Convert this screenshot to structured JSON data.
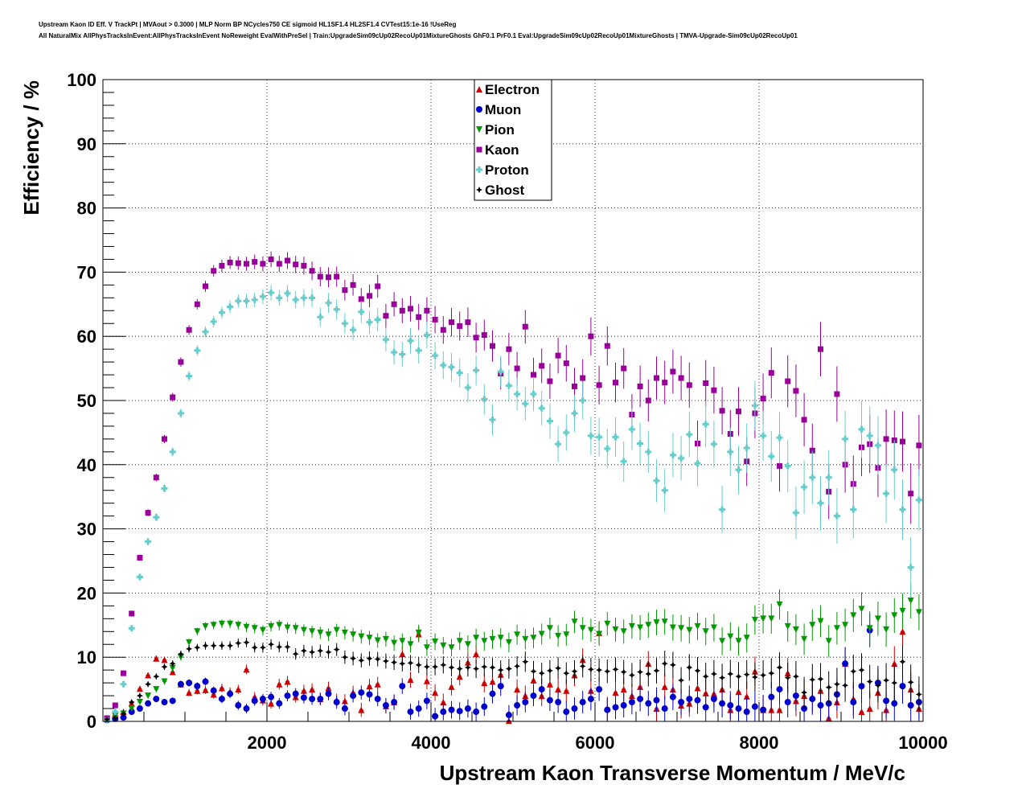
{
  "header": {
    "line1": "Upstream Kaon ID Eff. V TrackPt | MVAout > 0.3000 | MLP Norm BP NCycles750 CE sigmoid HL1SF1.4 HL2SF1.4 CVTest15:1e-16 !UseReg",
    "line2": "All NaturalMix AllPhysTracksInEvent:AllPhysTracksInEvent NoReweight EvalWithPreSel | Train:UpgradeSim09cUp02RecoUp01MixtureGhosts GhF0.1 PrF0.1 Eval:UpgradeSim09cUp02RecoUp01MixtureGhosts | TMVA-Upgrade-Sim09cUp02RecoUp01"
  },
  "chart_data": {
    "type": "scatter",
    "title": "",
    "xlabel": "Upstream Kaon Transverse Momentum / MeV/c",
    "ylabel": "Efficiency / %",
    "xlim": [
      0,
      10000
    ],
    "ylim": [
      0,
      100
    ],
    "xticks": [
      "2000",
      "4000",
      "6000",
      "8000",
      "10000"
    ],
    "yticks": [
      "0",
      "10",
      "20",
      "30",
      "40",
      "50",
      "60",
      "70",
      "80",
      "90",
      "100"
    ],
    "grid": true,
    "legend_placement": "top-center",
    "x": [
      50,
      150,
      250,
      350,
      450,
      550,
      650,
      750,
      850,
      950,
      1050,
      1150,
      1250,
      1350,
      1450,
      1550,
      1650,
      1750,
      1850,
      1950,
      2050,
      2150,
      2250,
      2350,
      2450,
      2550,
      2650,
      2750,
      2850,
      2950,
      3050,
      3150,
      3250,
      3350,
      3450,
      3550,
      3650,
      3750,
      3850,
      3950,
      4050,
      4150,
      4250,
      4350,
      4450,
      4550,
      4650,
      4750,
      4850,
      4950,
      5050,
      5150,
      5250,
      5350,
      5450,
      5550,
      5650,
      5750,
      5850,
      5950,
      6050,
      6150,
      6250,
      6350,
      6450,
      6550,
      6650,
      6750,
      6850,
      6950,
      7050,
      7150,
      7250,
      7350,
      7450,
      7550,
      7650,
      7750,
      7850,
      7950,
      8050,
      8150,
      8250,
      8350,
      8450,
      8550,
      8650,
      8750,
      8850,
      8950,
      9050,
      9150,
      9250,
      9350,
      9450,
      9550,
      9650,
      9750,
      9850,
      9950
    ],
    "series": [
      {
        "name": "Electron",
        "color": "#cc0000",
        "marker": "triangle-up",
        "values": [
          0.5,
          1.2,
          1.5,
          2.8,
          5.1,
          7.2,
          9.8,
          9.6,
          7.7,
          5.8,
          4.5,
          4.8,
          4.9,
          4.2,
          5.2,
          4.6,
          5.0,
          8.1,
          3.8,
          3.3,
          2.8,
          5.8,
          6.2,
          3.8,
          4.8,
          5.0,
          3.5,
          5.2,
          3.3,
          3.2,
          4.5,
          1.8,
          5.5,
          5.8,
          2.4,
          3.0,
          10.5,
          6.5,
          13.6,
          6.3,
          4.5,
          3.0,
          5.4,
          7.0,
          9.2,
          10.5,
          6.0,
          6.2,
          7.3,
          0.1,
          5.0,
          4.0,
          6.4,
          4.0,
          5.8,
          5.0,
          4.8,
          7.2,
          9.6,
          4.8,
          13.8,
          2.0,
          4.5,
          5.0,
          4.0,
          5.4,
          9.0,
          2.0,
          5.4,
          5.0,
          2.5,
          2.8,
          5.2,
          4.4,
          4.3,
          5.0,
          1.8,
          4.6,
          3.9,
          7.8,
          1.8,
          1.8,
          1.8,
          7.5,
          3.2,
          4.0,
          3.8,
          4.8,
          0.5,
          3.0,
          9.0,
          3.5,
          1.5,
          2.0,
          4.5,
          1.8,
          9.0,
          14.0,
          5.0,
          2.0
        ]
      },
      {
        "name": "Muon",
        "color": "#0000cc",
        "marker": "circle",
        "values": [
          0.2,
          0.4,
          0.6,
          1.5,
          2.0,
          2.8,
          3.5,
          3.0,
          3.2,
          5.8,
          6.0,
          5.5,
          6.2,
          4.8,
          3.5,
          4.3,
          2.5,
          2.0,
          3.2,
          3.5,
          3.8,
          2.8,
          4.0,
          4.3,
          3.7,
          3.5,
          3.5,
          4.3,
          3.0,
          2.0,
          4.0,
          4.5,
          4.2,
          3.5,
          2.5,
          3.0,
          5.5,
          1.5,
          2.0,
          3.2,
          0.8,
          1.5,
          1.8,
          1.6,
          2.0,
          1.5,
          2.3,
          4.3,
          5.5,
          1.0,
          2.5,
          3.0,
          4.0,
          5.0,
          3.3,
          3.0,
          1.5,
          2.0,
          3.0,
          3.5,
          5.0,
          1.8,
          2.2,
          2.5,
          3.0,
          3.5,
          2.8,
          3.3,
          2.0,
          3.8,
          3.0,
          3.5,
          3.3,
          2.2,
          3.5,
          2.8,
          2.5,
          2.0,
          1.5,
          2.3,
          1.8,
          3.8,
          5.0,
          3.0,
          4.0,
          2.0,
          3.5,
          2.5,
          2.8,
          4.2,
          9.0,
          3.0,
          5.5,
          14.2,
          6.0,
          3.2,
          2.8,
          5.5,
          2.5,
          3.0
        ]
      },
      {
        "name": "Pion",
        "color": "#009900",
        "marker": "triangle-down",
        "values": [
          0.3,
          0.8,
          1.2,
          2.0,
          3.0,
          4.0,
          5.0,
          6.2,
          8.3,
          10.0,
          12.3,
          14.0,
          14.8,
          15.0,
          15.2,
          15.2,
          15.0,
          14.7,
          14.5,
          14.2,
          14.8,
          15.0,
          14.6,
          14.5,
          14.2,
          14.0,
          13.8,
          13.5,
          14.2,
          13.8,
          13.5,
          13.2,
          13.0,
          12.6,
          12.8,
          12.2,
          12.5,
          12.0,
          13.8,
          11.5,
          12.4,
          11.8,
          11.5,
          12.5,
          12.0,
          13.0,
          12.5,
          12.8,
          13.0,
          12.3,
          13.5,
          12.8,
          13.0,
          13.6,
          14.5,
          13.3,
          13.5,
          15.5,
          14.5,
          14.2,
          13.6,
          15.2,
          14.3,
          14.0,
          14.8,
          14.6,
          15.0,
          15.4,
          15.5,
          14.6,
          14.5,
          14.2,
          14.8,
          14.0,
          14.6,
          12.5,
          13.2,
          12.5,
          13.0,
          15.8,
          16.0,
          16.0,
          18.2,
          14.8,
          14.3,
          12.8,
          15.0,
          15.6,
          12.5,
          14.5,
          15.0,
          16.5,
          17.5,
          14.5,
          16.0,
          14.3,
          16.5,
          17.2,
          18.8,
          17.0
        ]
      },
      {
        "name": "Kaon",
        "color": "#990099",
        "marker": "square",
        "values": [
          0.5,
          2.5,
          7.5,
          16.8,
          25.5,
          32.5,
          38.0,
          44.0,
          50.5,
          56.0,
          61.0,
          65.0,
          67.8,
          70.2,
          71.0,
          71.5,
          71.4,
          71.3,
          71.6,
          71.3,
          72.0,
          71.3,
          71.8,
          71.2,
          71.0,
          70.2,
          69.3,
          69.2,
          69.3,
          67.2,
          68.0,
          65.8,
          66.3,
          67.8,
          63.2,
          65.0,
          64.0,
          64.3,
          63.0,
          64.0,
          62.6,
          61.0,
          62.2,
          61.6,
          62.2,
          59.8,
          60.2,
          58.5,
          54.2,
          58.0,
          55.0,
          61.5,
          54.0,
          55.4,
          53.0,
          57.0,
          55.8,
          52.2,
          53.5,
          60.0,
          52.4,
          58.5,
          52.8,
          55.0,
          47.8,
          52.2,
          50.0,
          53.5,
          52.8,
          54.5,
          53.5,
          52.4,
          43.3,
          52.7,
          51.6,
          48.4,
          44.8,
          48.3,
          40.5,
          48.0,
          50.3,
          54.3,
          39.8,
          53.0,
          51.5,
          47.0,
          42.2,
          58.0,
          35.8,
          51.0,
          40.0,
          37.0,
          42.7,
          43.2,
          39.5,
          44.0,
          43.8,
          43.6,
          35.5,
          43.0
        ]
      },
      {
        "name": "Proton",
        "color": "#66cccc",
        "marker": "plus",
        "values": [
          0.2,
          1.5,
          5.8,
          14.5,
          22.5,
          28.0,
          31.8,
          36.3,
          42.0,
          48.0,
          53.8,
          57.8,
          60.7,
          62.3,
          63.7,
          64.6,
          65.5,
          65.5,
          65.7,
          66.2,
          66.8,
          66.0,
          66.7,
          65.7,
          66.0,
          66.0,
          63.0,
          65.2,
          64.2,
          62.0,
          61.0,
          63.8,
          62.2,
          62.6,
          59.5,
          57.5,
          57.2,
          59.3,
          57.8,
          60.2,
          57.0,
          55.5,
          55.2,
          54.3,
          52.0,
          54.7,
          50.2,
          47.0,
          54.5,
          52.3,
          51.0,
          49.5,
          51.0,
          48.8,
          46.8,
          43.2,
          45.0,
          48.0,
          50.0,
          44.5,
          44.3,
          42.5,
          44.3,
          40.5,
          45.5,
          43.3,
          42.0,
          37.5,
          36.0,
          41.5,
          41.0,
          44.7,
          40.2,
          46.3,
          43.2,
          33.0,
          42.0,
          39.2,
          42.6,
          49.2,
          44.5,
          41.3,
          44.2,
          39.8,
          32.5,
          36.5,
          38.0,
          34.0,
          38.0,
          32.0,
          44.0,
          33.0,
          45.5,
          44.5,
          43.0,
          35.5,
          39.2,
          33.0,
          24.0,
          34.5
        ]
      },
      {
        "name": "Ghost",
        "color": "#000000",
        "marker": "star",
        "values": [
          0.3,
          0.5,
          1.2,
          3.0,
          4.0,
          5.8,
          7.0,
          8.5,
          9.0,
          10.5,
          11.3,
          11.5,
          11.8,
          11.8,
          11.8,
          11.8,
          12.2,
          12.3,
          11.5,
          11.5,
          12.0,
          11.6,
          11.6,
          10.5,
          11.0,
          10.8,
          11.0,
          10.8,
          11.2,
          10.0,
          9.8,
          9.5,
          9.8,
          9.7,
          9.4,
          9.2,
          9.0,
          9.1,
          8.8,
          8.5,
          8.5,
          8.8,
          8.4,
          8.2,
          8.4,
          8.2,
          8.5,
          8.4,
          8.0,
          8.2,
          8.6,
          9.3,
          7.8,
          7.5,
          7.9,
          8.3,
          7.5,
          7.8,
          8.6,
          8.1,
          8.0,
          7.8,
          8.1,
          7.7,
          7.2,
          7.7,
          7.4,
          7.9,
          9.0,
          8.8,
          6.4,
          8.4,
          7.9,
          7.0,
          7.4,
          6.8,
          7.4,
          7.0,
          7.3,
          6.9,
          7.2,
          7.5,
          8.4,
          6.8,
          7.0,
          4.5,
          6.5,
          6.6,
          5.3,
          5.8,
          5.6,
          7.8,
          8.0,
          6.2,
          5.6,
          6.4,
          6.0,
          9.3,
          6.1,
          4.2
        ]
      }
    ]
  }
}
